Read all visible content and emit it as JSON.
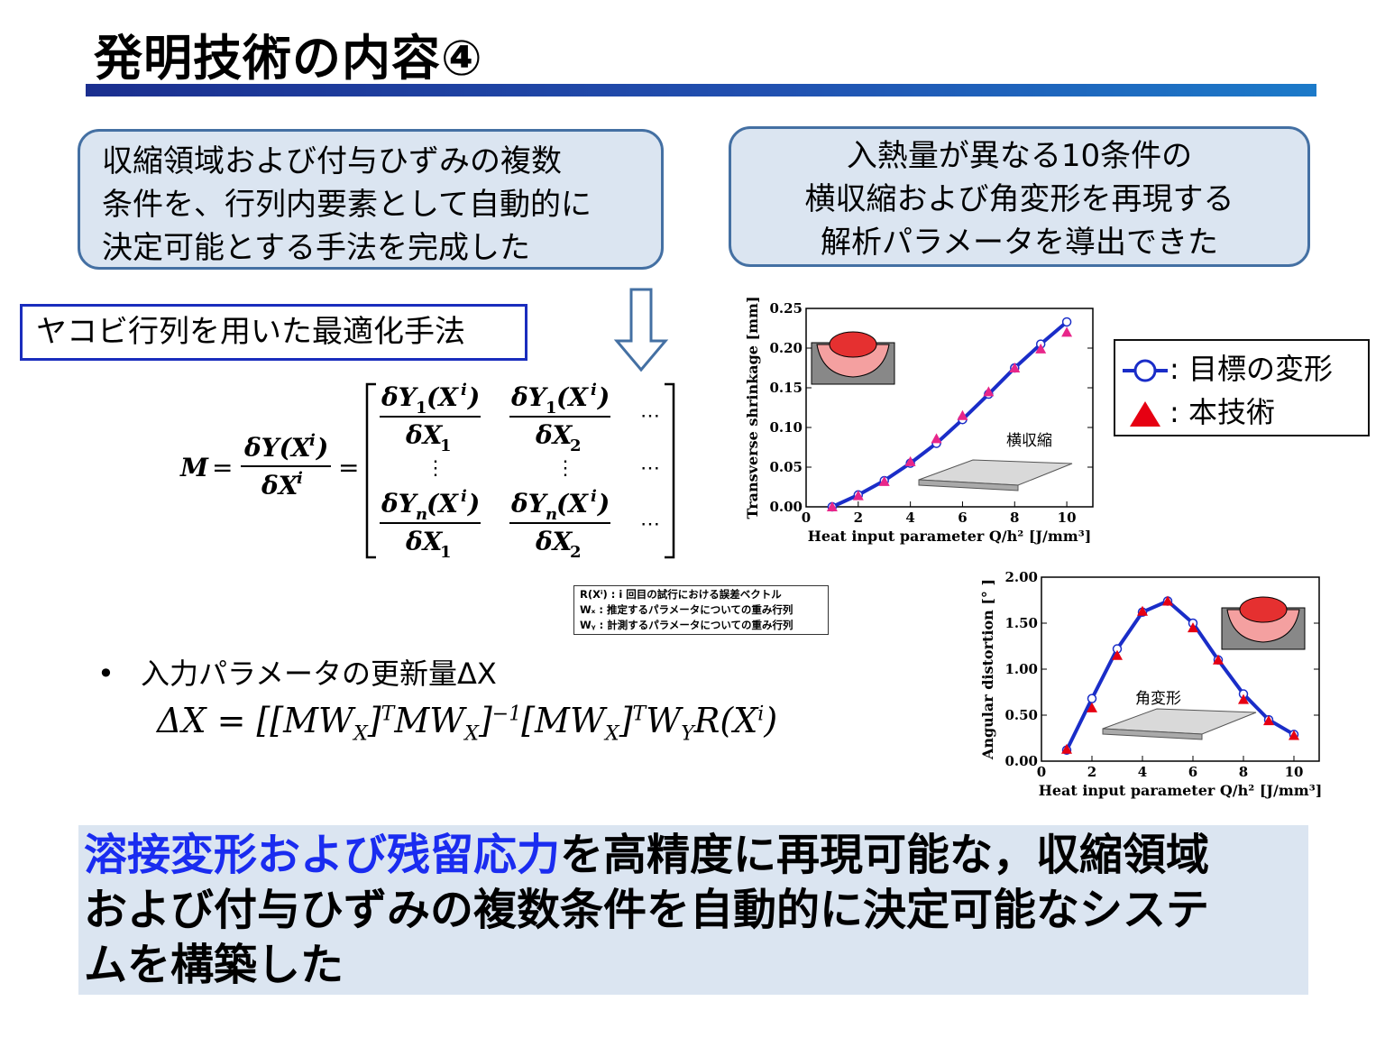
{
  "title": "発明技術の内容④",
  "callout_left": [
    "収縮領域および付与ひずみの複数",
    "条件を、行列内要素として自動的に",
    "決定可能とする手法を完成した"
  ],
  "callout_right": [
    "入熱量が異なる10条件の",
    "横収縮および角変形を再現する",
    "解析パラメータを導出できた"
  ],
  "method_label": "ヤコビ行列を用いた最適化手法",
  "notes": [
    "R(Xⁱ) : i 回目の試行における誤差ベクトル",
    "Wₓ : 推定するパラメータについての重み行列",
    "Wᵧ : 計測するパラメータについての重み行列"
  ],
  "bullet_text": "入力パラメータの更新量ΔX",
  "legend": {
    "target": ": 目標の変形",
    "ours": ": 本技術"
  },
  "summary": {
    "highlight": "溶接変形および残留応力",
    "rest_line1": "を高精度に再現可能な，収縮領域",
    "line2": "および付与ひずみの複数条件を自動的に決定可能なシステ",
    "line3": "ムを構築した"
  },
  "colors": {
    "accent_blue": "#1a2cf0",
    "callout_bg": "#dbe5f1",
    "callout_border": "#4470a3",
    "series_line": "#1a2dc8",
    "triangle": "#e8268a"
  },
  "chart_data": [
    {
      "type": "line",
      "xlabel": "Heat input parameter Q/h² [J/mm³]",
      "ylabel": "Transverse shrinkage [mm]",
      "annotation": "横収縮",
      "xlim": [
        0,
        11
      ],
      "ylim": [
        0,
        0.25
      ],
      "xticks": [
        "0",
        "2",
        "4",
        "6",
        "8",
        "10"
      ],
      "yticks": [
        "0.00",
        "0.05",
        "0.10",
        "0.15",
        "0.20",
        "0.25"
      ],
      "x": [
        1,
        2,
        3,
        4,
        5,
        6,
        7,
        8,
        9,
        10
      ],
      "series": [
        {
          "name": "目標の変形",
          "marker": "circle",
          "values": [
            0.0,
            0.015,
            0.033,
            0.055,
            0.08,
            0.11,
            0.142,
            0.175,
            0.205,
            0.233
          ]
        },
        {
          "name": "本技術",
          "marker": "triangle",
          "values": [
            0.0,
            0.014,
            0.032,
            0.057,
            0.086,
            0.115,
            0.145,
            0.175,
            0.199,
            0.22
          ]
        }
      ]
    },
    {
      "type": "line",
      "xlabel": "Heat input parameter Q/h² [J/mm³]",
      "ylabel": "Angular distortion [° ]",
      "annotation": "角変形",
      "xlim": [
        0,
        11
      ],
      "ylim": [
        0,
        2.0
      ],
      "xticks": [
        "0",
        "2",
        "4",
        "6",
        "8",
        "10"
      ],
      "yticks": [
        "0.00",
        "0.50",
        "1.00",
        "1.50",
        "2.00"
      ],
      "x": [
        1,
        2,
        3,
        4,
        5,
        6,
        7,
        8,
        9,
        10
      ],
      "series": [
        {
          "name": "目標の変形",
          "marker": "circle",
          "values": [
            0.12,
            0.68,
            1.22,
            1.62,
            1.74,
            1.5,
            1.1,
            0.73,
            0.45,
            0.29
          ]
        },
        {
          "name": "本技術",
          "marker": "triangle",
          "values": [
            0.13,
            0.58,
            1.15,
            1.63,
            1.74,
            1.45,
            1.1,
            0.67,
            0.44,
            0.28
          ]
        }
      ]
    }
  ]
}
